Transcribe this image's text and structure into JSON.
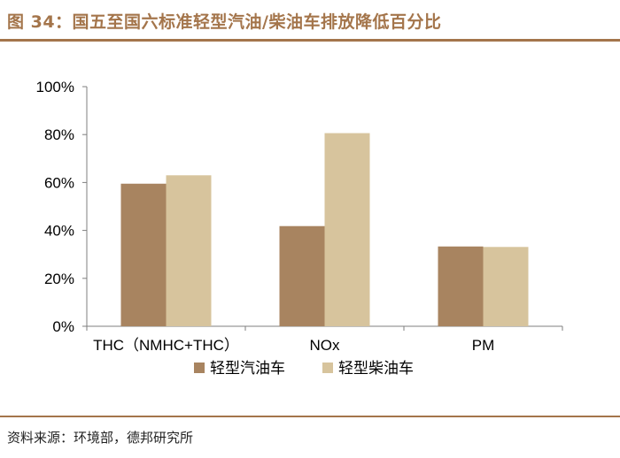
{
  "figure": {
    "title": "图 34：国五至国六标准轻型汽油/柴油车排放降低百分比",
    "source": "资料来源：环境部，德邦研究所"
  },
  "colors": {
    "accent": "#a4754b",
    "series_gasoline": "#a88460",
    "series_diesel": "#d7c49d"
  },
  "chart_data": {
    "type": "bar",
    "categories": [
      "THC（NMHC+THC）",
      "NOx",
      "PM"
    ],
    "series": [
      {
        "name": "轻型汽油车",
        "values": [
          59.5,
          41.8,
          33.3
        ]
      },
      {
        "name": "轻型柴油车",
        "values": [
          63.0,
          80.6,
          33.1
        ]
      }
    ],
    "yticks": [
      "0%",
      "20%",
      "40%",
      "60%",
      "80%",
      "100%"
    ],
    "ylim": [
      0,
      100
    ],
    "legend_position": "bottom",
    "grid": false
  }
}
